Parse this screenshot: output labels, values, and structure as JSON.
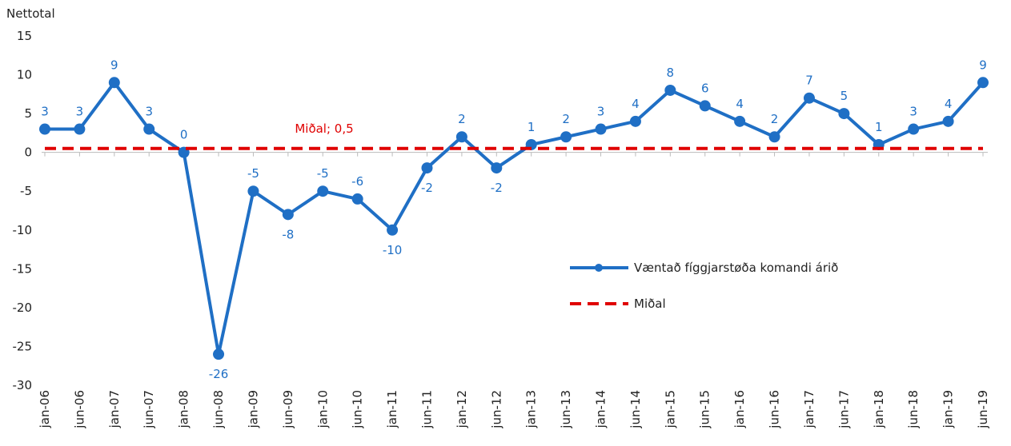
{
  "chart_data": {
    "type": "line",
    "y_label": "Nettotal",
    "categories": [
      "jan-06",
      "jun-06",
      "jan-07",
      "jun-07",
      "jan-08",
      "jun-08",
      "jan-09",
      "jun-09",
      "jan-10",
      "jun-10",
      "jan-11",
      "jun-11",
      "jan-12",
      "jun-12",
      "jan-13",
      "jun-13",
      "jan-14",
      "jun-14",
      "jan-15",
      "jun-15",
      "jan-16",
      "jun-16",
      "jan-17",
      "jun-17",
      "jan-18",
      "jun-18",
      "jan-19",
      "jun-19"
    ],
    "series": [
      {
        "name": "Væntað fíggjarstøða komandi árið",
        "color": "#1f6fc5",
        "values": [
          3,
          3,
          9,
          3,
          0,
          -26,
          -5,
          -8,
          -5,
          -6,
          -10,
          -2,
          2,
          -2,
          1,
          2,
          3,
          4,
          8,
          6,
          4,
          2,
          7,
          5,
          1,
          3,
          4,
          9
        ]
      },
      {
        "name": "Miðal",
        "color": "#e00000",
        "dashed": true,
        "values": [
          0.5,
          0.5,
          0.5,
          0.5,
          0.5,
          0.5,
          0.5,
          0.5,
          0.5,
          0.5,
          0.5,
          0.5,
          0.5,
          0.5,
          0.5,
          0.5,
          0.5,
          0.5,
          0.5,
          0.5,
          0.5,
          0.5,
          0.5,
          0.5,
          0.5,
          0.5,
          0.5,
          0.5
        ]
      }
    ],
    "annotations": [
      {
        "text": "Miðal; 0,5",
        "value": 0.5
      }
    ],
    "ylim": [
      -30,
      15
    ],
    "yticks": [
      -30,
      -25,
      -20,
      -15,
      -10,
      -5,
      0,
      5,
      10,
      15
    ],
    "grid": false,
    "legend": "right"
  }
}
